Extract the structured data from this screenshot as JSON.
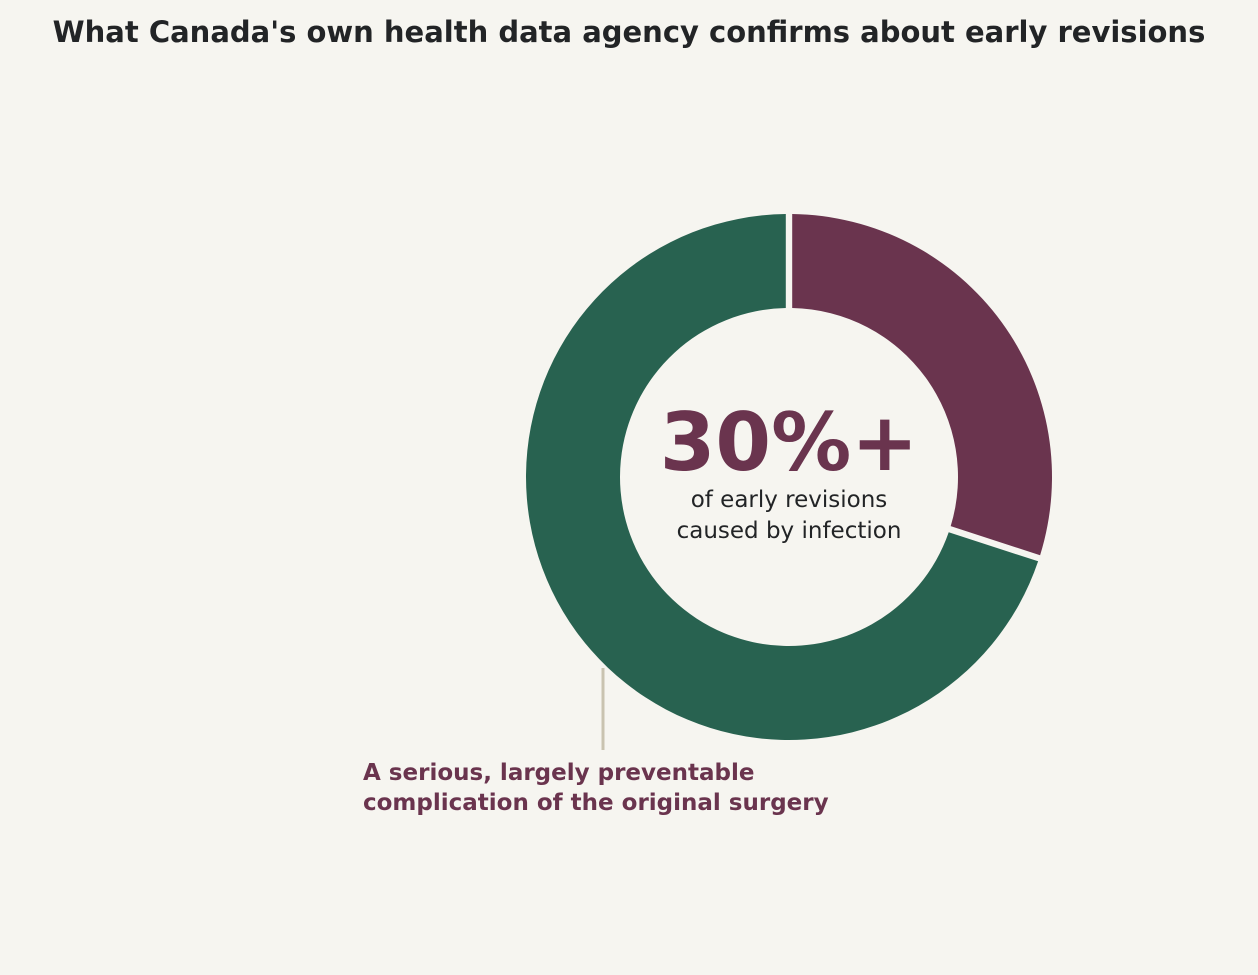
{
  "chart_data": {
    "type": "pie",
    "title": "What Canada's own health data agency confirms about early revisions",
    "donut": true,
    "slices": [
      {
        "value": 30,
        "color": "#6a344e"
      },
      {
        "value": 70,
        "color": "#286250"
      }
    ],
    "center_value": "30%+",
    "center_label_lines": [
      "of early revisions",
      "caused by infection"
    ],
    "annotation_lines": [
      "A serious, largely preventable",
      "complication of the original surgery"
    ],
    "annotation_line_color": "#c9c3b0",
    "grid": false,
    "legend": "none"
  },
  "colors": {
    "background": "#f6f5f0",
    "text": "#222426",
    "accent": "#6a344e",
    "secondary": "#286250"
  }
}
